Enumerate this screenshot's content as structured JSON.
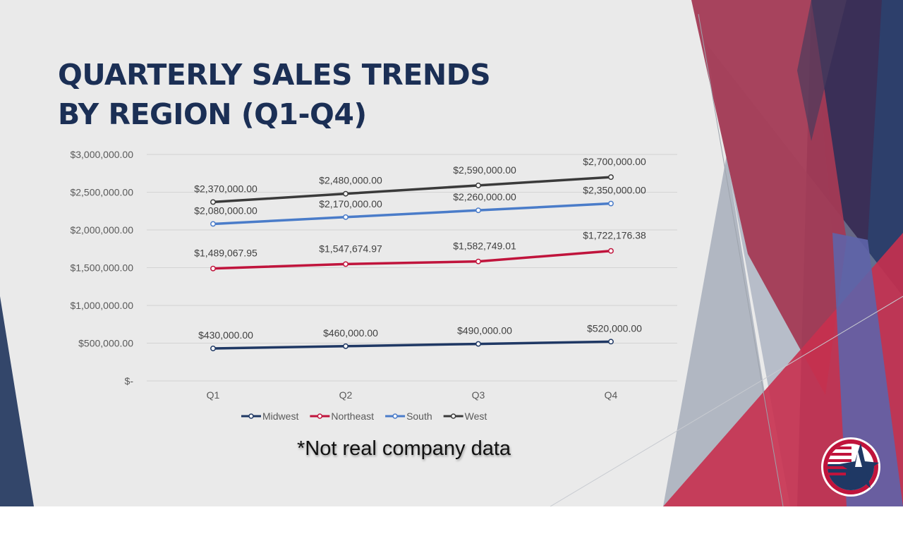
{
  "slide": {
    "title_line1": "QUARTERLY SALES TRENDS",
    "title_line2": "BY REGION (Q1-Q4)",
    "note": "*Not real company data",
    "logo_icon": "star-circle-logo-icon"
  },
  "colors": {
    "background": "#eaeaea",
    "title": "#1b2f55",
    "midwest": "#1f3864",
    "northeast": "#c0143c",
    "south": "#4a7cc9",
    "west": "#3a3a3a"
  },
  "chart_data": {
    "type": "line",
    "title": "",
    "xlabel": "",
    "ylabel": "",
    "categories": [
      "Q1",
      "Q2",
      "Q3",
      "Q4"
    ],
    "ylim": [
      0,
      3000000
    ],
    "yticks": [
      {
        "value": 0,
        "label": "$-"
      },
      {
        "value": 500000,
        "label": "$500,000.00"
      },
      {
        "value": 1000000,
        "label": "$1,000,000.00"
      },
      {
        "value": 1500000,
        "label": "$1,500,000.00"
      },
      {
        "value": 2000000,
        "label": "$2,000,000.00"
      },
      {
        "value": 2500000,
        "label": "$2,500,000.00"
      },
      {
        "value": 3000000,
        "label": "$3,000,000.00"
      }
    ],
    "grid": true,
    "legend_position": "bottom",
    "series": [
      {
        "name": "Midwest",
        "color": "#1f3864",
        "values": [
          430000,
          460000,
          490000,
          520000
        ],
        "labels": [
          "$430,000.00",
          "$460,000.00",
          "$490,000.00",
          "$520,000.00"
        ]
      },
      {
        "name": "Northeast",
        "color": "#c0143c",
        "values": [
          1489067.95,
          1547674.97,
          1582749.01,
          1722176.38
        ],
        "labels": [
          "$1,489,067.95",
          "$1,547,674.97",
          "$1,582,749.01",
          "$1,722,176.38"
        ]
      },
      {
        "name": "South",
        "color": "#4a7cc9",
        "values": [
          2080000,
          2170000,
          2260000,
          2350000
        ],
        "labels": [
          "$2,080,000.00",
          "$2,170,000.00",
          "$2,260,000.00",
          "$2,350,000.00"
        ]
      },
      {
        "name": "West",
        "color": "#3a3a3a",
        "values": [
          2370000,
          2480000,
          2590000,
          2700000
        ],
        "labels": [
          "$2,370,000.00",
          "$2,480,000.00",
          "$2,590,000.00",
          "$2,700,000.00"
        ]
      }
    ]
  }
}
